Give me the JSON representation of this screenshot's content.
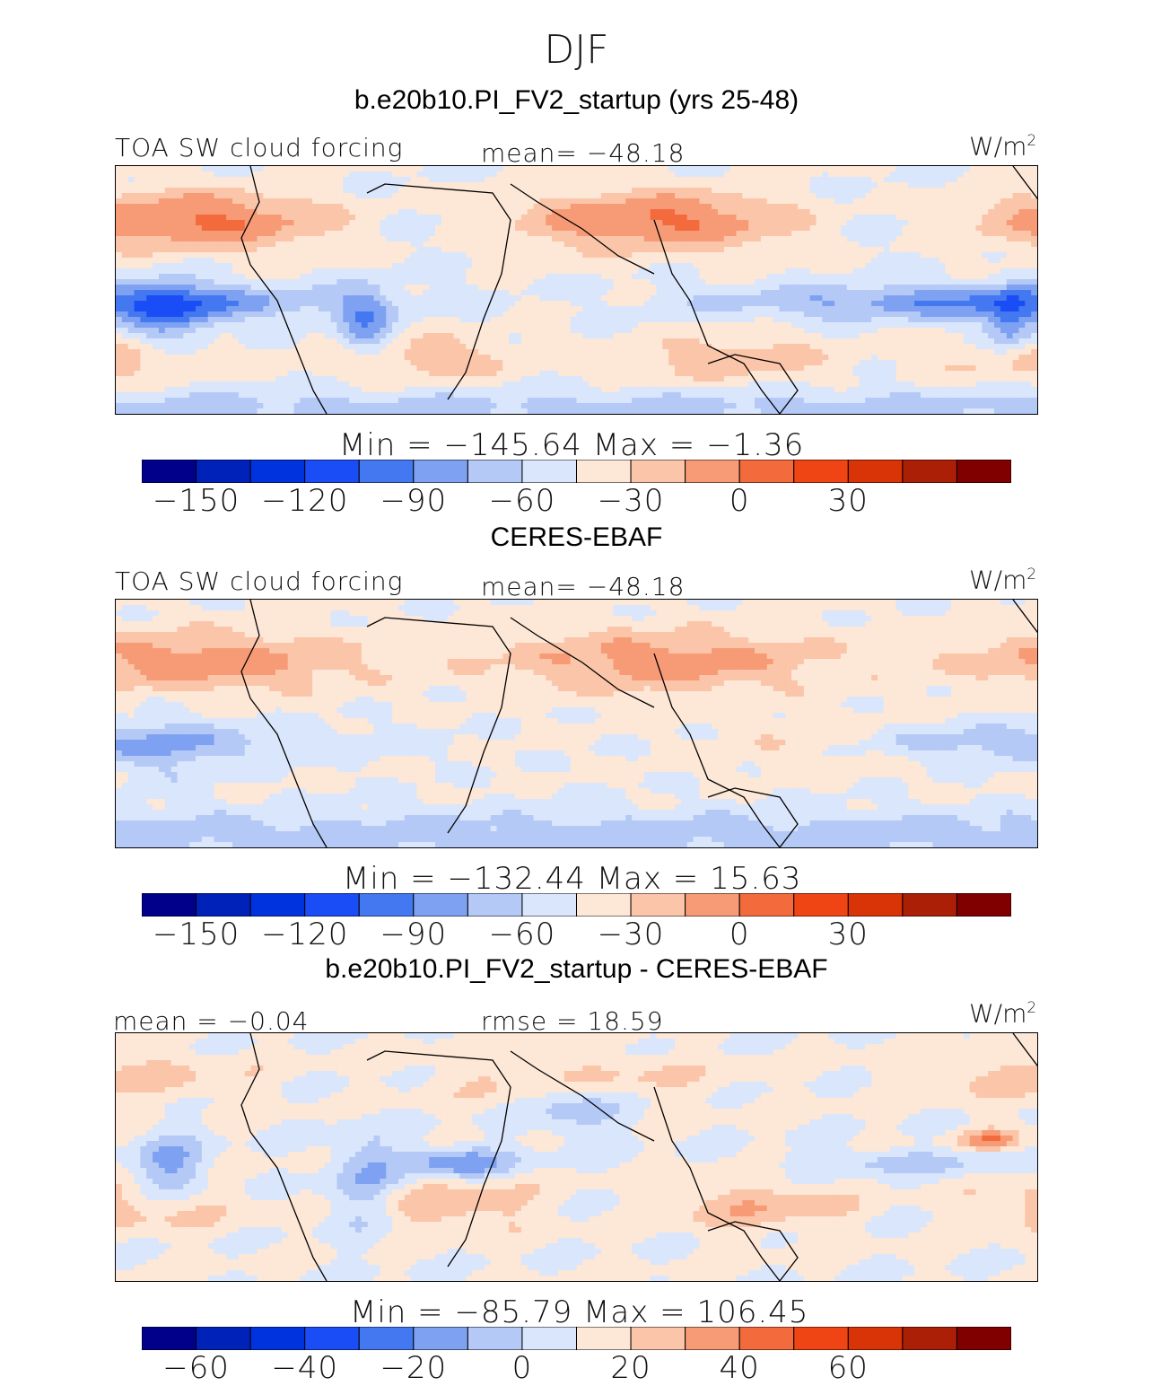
{
  "header": {
    "season": "DJF",
    "case_title": "b.e20b10.PI_FV2_startup (yrs 25-48)"
  },
  "panels": [
    {
      "id": "model",
      "variable": "TOA SW cloud forcing",
      "stat_center": "mean=  −48.18",
      "units": "W/m",
      "units_exp": "2",
      "minmax": "Min  =  −145.64  Max  =   −1.36",
      "title_below": "CERES-EBAF"
    },
    {
      "id": "obs",
      "variable": "TOA SW cloud forcing",
      "stat_center": "mean=  −48.18",
      "units": "W/m",
      "units_exp": "2",
      "minmax": "Min  =  −132.44  Max  =   15.63",
      "title_below": "b.e20b10.PI_FV2_startup - CERES-EBAF"
    },
    {
      "id": "diff",
      "stat_left": "mean  =   −0.04",
      "stat_center": "rmse  =   18.59",
      "units": "W/m",
      "units_exp": "2",
      "minmax": "Min  =  −85.79  Max  =  106.45"
    }
  ],
  "chart_data": [
    {
      "type": "heatmap",
      "title": "TOA SW cloud forcing",
      "units": "W/m2",
      "colorbar": {
        "colors": [
          "#00008b",
          "#0022b8",
          "#0033dd",
          "#1a4df5",
          "#4478f0",
          "#7ea1f2",
          "#b4c9f6",
          "#dae6fb",
          "#fde7d7",
          "#fbc5a9",
          "#f79b76",
          "#f36b3d",
          "#ef4414",
          "#d93308",
          "#aa1f06",
          "#800000"
        ],
        "ticks": [
          "−150",
          "−120",
          "−90",
          "−60",
          "−30",
          "0",
          "30"
        ],
        "tick_positions": [
          1,
          3,
          5,
          7,
          9,
          11,
          13
        ],
        "levels": [
          -165,
          -150,
          -135,
          -120,
          -105,
          -90,
          -75,
          -60,
          -45,
          -30,
          -15,
          0,
          15,
          30,
          45
        ]
      },
      "stats": {
        "mean": -48.18,
        "min": -145.64,
        "max": -1.36
      }
    },
    {
      "type": "heatmap",
      "title": "TOA SW cloud forcing",
      "units": "W/m2",
      "colorbar": {
        "colors": [
          "#00008b",
          "#0022b8",
          "#0033dd",
          "#1a4df5",
          "#4478f0",
          "#7ea1f2",
          "#b4c9f6",
          "#dae6fb",
          "#fde7d7",
          "#fbc5a9",
          "#f79b76",
          "#f36b3d",
          "#ef4414",
          "#d93308",
          "#aa1f06",
          "#800000"
        ],
        "ticks": [
          "−150",
          "−120",
          "−90",
          "−60",
          "−30",
          "0",
          "30"
        ],
        "tick_positions": [
          1,
          3,
          5,
          7,
          9,
          11,
          13
        ],
        "levels": [
          -165,
          -150,
          -135,
          -120,
          -105,
          -90,
          -75,
          -60,
          -45,
          -30,
          -15,
          0,
          15,
          30,
          45
        ]
      },
      "stats": {
        "mean": -48.18,
        "min": -132.44,
        "max": 15.63
      }
    },
    {
      "type": "heatmap",
      "title": "b.e20b10.PI_FV2_startup - CERES-EBAF",
      "units": "W/m2",
      "colorbar": {
        "colors": [
          "#00008b",
          "#0022b8",
          "#0033dd",
          "#1a4df5",
          "#4478f0",
          "#7ea1f2",
          "#b4c9f6",
          "#dae6fb",
          "#fde7d7",
          "#fbc5a9",
          "#f79b76",
          "#f36b3d",
          "#ef4414",
          "#d93308",
          "#aa1f06",
          "#800000"
        ],
        "ticks": [
          "−60",
          "−40",
          "−20",
          "0",
          "20",
          "40",
          "60"
        ],
        "tick_positions": [
          1,
          3,
          5,
          7,
          9,
          11,
          13
        ],
        "levels": [
          -70,
          -60,
          -50,
          -40,
          -30,
          -20,
          -10,
          0,
          10,
          20,
          30,
          40,
          50,
          60,
          70
        ]
      },
      "stats": {
        "mean": -0.04,
        "rmse": 18.59,
        "min": -85.79,
        "max": 106.45
      }
    }
  ]
}
